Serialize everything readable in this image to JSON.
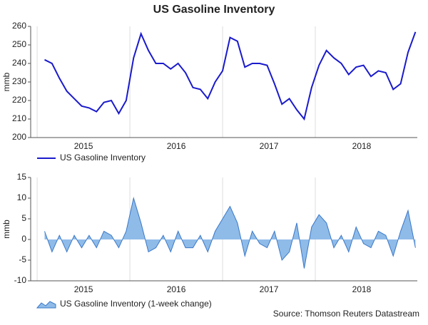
{
  "source": "Source: Thomson Reuters Datastream",
  "chart_data": [
    {
      "type": "line",
      "title": "US Gasoline Inventory",
      "ylabel": "mmb",
      "x": [
        2015.08,
        2015.16,
        2015.24,
        2015.32,
        2015.4,
        2015.48,
        2015.56,
        2015.64,
        2015.72,
        2015.8,
        2015.88,
        2015.96,
        2016.04,
        2016.12,
        2016.2,
        2016.28,
        2016.36,
        2016.44,
        2016.52,
        2016.6,
        2016.68,
        2016.76,
        2016.84,
        2016.92,
        2017,
        2017.08,
        2017.16,
        2017.24,
        2017.32,
        2017.4,
        2017.48,
        2017.56,
        2017.64,
        2017.72,
        2017.8,
        2017.88,
        2017.96,
        2018.04,
        2018.12,
        2018.2,
        2018.28,
        2018.36,
        2018.44,
        2018.52,
        2018.6,
        2018.68,
        2018.76,
        2018.84,
        2018.92,
        2019,
        2019.08
      ],
      "series": [
        {
          "name": "US Gasoline Inventory",
          "color": "#1a1acc",
          "values": [
            242,
            240,
            232,
            225,
            221,
            217,
            216,
            214,
            219,
            220,
            213,
            220,
            243,
            256,
            247,
            240,
            240,
            237,
            240,
            235,
            227,
            226,
            221,
            230,
            236,
            254,
            252,
            238,
            240,
            240,
            239,
            229,
            218,
            221,
            215,
            210,
            227,
            239,
            247,
            243,
            240,
            234,
            238,
            239,
            233,
            236,
            235,
            226,
            229,
            246,
            257
          ]
        }
      ],
      "xlim": [
        2014.93,
        2019.1
      ],
      "xticks": [
        2015,
        2016,
        2017,
        2018
      ],
      "ylim": [
        200,
        260
      ],
      "yticks": [
        200,
        210,
        220,
        230,
        240,
        250,
        260
      ]
    },
    {
      "type": "area",
      "ylabel": "mmb",
      "x": [
        2015.08,
        2015.16,
        2015.24,
        2015.32,
        2015.4,
        2015.48,
        2015.56,
        2015.64,
        2015.72,
        2015.8,
        2015.88,
        2015.96,
        2016.04,
        2016.12,
        2016.2,
        2016.28,
        2016.36,
        2016.44,
        2016.52,
        2016.6,
        2016.68,
        2016.76,
        2016.84,
        2016.92,
        2017,
        2017.08,
        2017.16,
        2017.24,
        2017.32,
        2017.4,
        2017.48,
        2017.56,
        2017.64,
        2017.72,
        2017.8,
        2017.88,
        2017.96,
        2018.04,
        2018.12,
        2018.2,
        2018.28,
        2018.36,
        2018.44,
        2018.52,
        2018.6,
        2018.68,
        2018.76,
        2018.84,
        2018.92,
        2019,
        2019.08
      ],
      "series": [
        {
          "name": "US Gasoline Inventory (1-week change)",
          "color": "#8fbbe8",
          "values": [
            2,
            -3,
            1,
            -3,
            1,
            -2,
            1,
            -2,
            2,
            1,
            -2,
            2,
            10,
            4,
            -3,
            -2,
            1,
            -3,
            2,
            -2,
            -2,
            1,
            -3,
            2,
            5,
            8,
            4,
            -4,
            2,
            -1,
            -2,
            2,
            -5,
            -3,
            4,
            -7,
            3,
            6,
            4,
            -2,
            1,
            -3,
            3,
            -1,
            -2,
            2,
            1,
            -4,
            2,
            7,
            -2
          ]
        }
      ],
      "xlim": [
        2014.93,
        2019.1
      ],
      "xticks": [
        2015,
        2016,
        2017,
        2018
      ],
      "ylim": [
        -10,
        15
      ],
      "yticks": [
        -10,
        -5,
        0,
        5,
        10,
        15
      ]
    }
  ]
}
